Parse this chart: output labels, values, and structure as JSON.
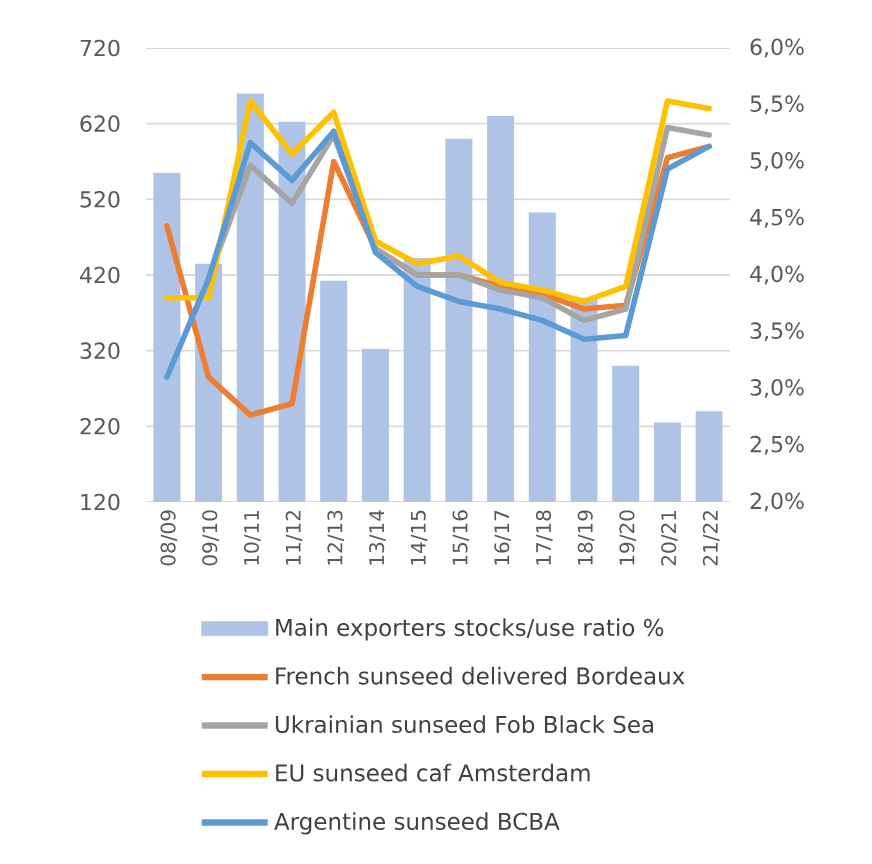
{
  "chart_data": {
    "type": "bar",
    "categories": [
      "08/09",
      "09/10",
      "10/11",
      "11/12",
      "12/13",
      "13/14",
      "14/15",
      "15/16",
      "16/17",
      "17/18",
      "18/19",
      "19/20",
      "20/21",
      "21/22"
    ],
    "ylim": [
      120,
      720
    ],
    "yticks": [
      120,
      220,
      320,
      420,
      520,
      620,
      720
    ],
    "y2lim": [
      2.0,
      6.0
    ],
    "y2ticks": [
      {
        "value": 2.0,
        "label": "2,0%"
      },
      {
        "value": 2.5,
        "label": "2,5%"
      },
      {
        "value": 3.0,
        "label": "3,0%"
      },
      {
        "value": 3.5,
        "label": "3,5%"
      },
      {
        "value": 4.0,
        "label": "4,0%"
      },
      {
        "value": 4.5,
        "label": "4,5%"
      },
      {
        "value": 5.0,
        "label": "5,0%"
      },
      {
        "value": 5.5,
        "label": "5,5%"
      },
      {
        "value": 6.0,
        "label": "6,0%"
      }
    ],
    "grid": "y",
    "legend": "bottom",
    "line_style": "solid",
    "series": [
      {
        "name": "Main exporters stocks/use ratio %",
        "axis": "y2",
        "color": "#AEC3E6",
        "values": [
          4.9,
          4.1,
          5.6,
          5.35,
          3.95,
          3.35,
          4.15,
          5.2,
          5.4,
          4.55,
          3.8,
          3.2,
          2.7,
          2.8
        ]
      },
      {
        "name": "French sunseed delivered Bordeaux",
        "type": "line",
        "color": "#ED7D31",
        "values": [
          485,
          285,
          235,
          250,
          570,
          455,
          420,
          420,
          405,
          395,
          375,
          380,
          575,
          590
        ]
      },
      {
        "name": "Ukrainian sunseed Fob Black Sea",
        "type": "line",
        "color": "#A5A5A5",
        "values": [
          null,
          415,
          565,
          515,
          605,
          455,
          420,
          420,
          400,
          390,
          360,
          375,
          615,
          605
        ]
      },
      {
        "name": "EU sunseed caf Amsterdam",
        "type": "line",
        "color": "#FFC000",
        "values": [
          390,
          390,
          650,
          580,
          635,
          465,
          435,
          445,
          410,
          400,
          385,
          405,
          650,
          640
        ]
      },
      {
        "name": "Argentine sunseed BCBA",
        "type": "line",
        "color": "#5B9BD5",
        "values": [
          285,
          415,
          595,
          545,
          610,
          450,
          405,
          385,
          375,
          360,
          335,
          340,
          560,
          590
        ]
      }
    ]
  }
}
